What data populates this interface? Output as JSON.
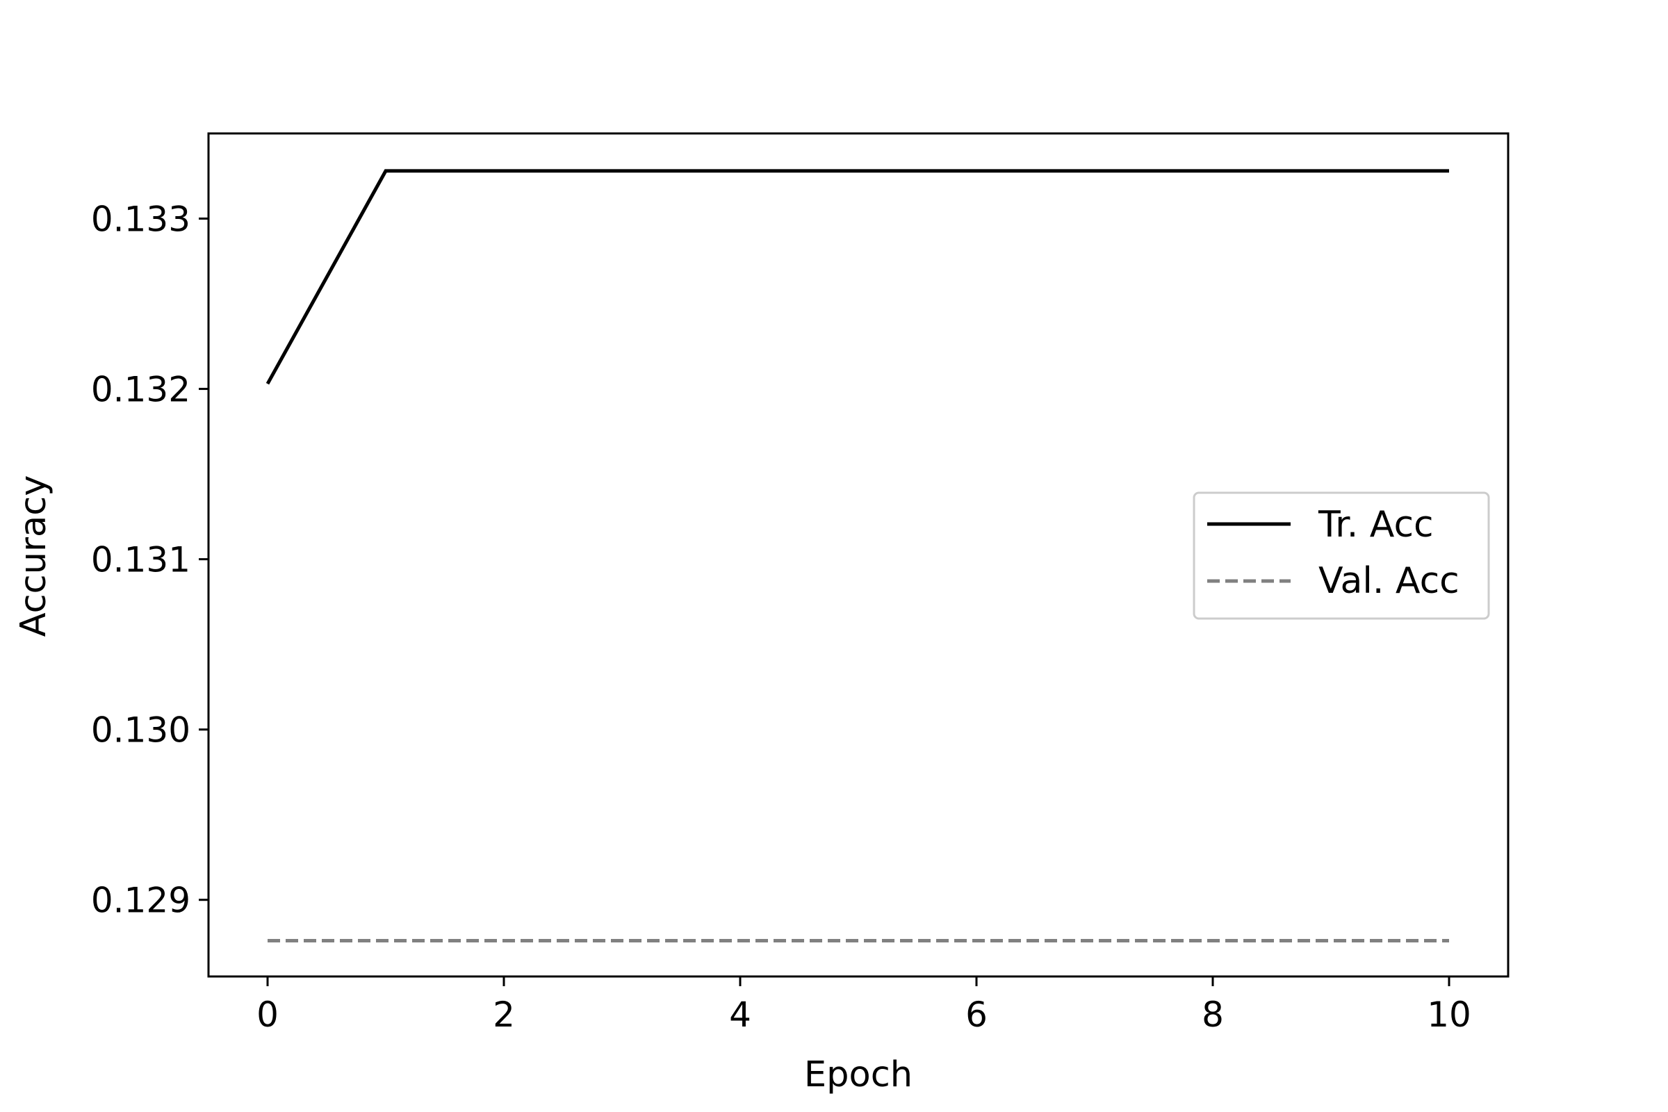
{
  "chart_data": {
    "type": "line",
    "title": "",
    "xlabel": "Epoch",
    "ylabel": "Accuracy",
    "x": [
      0,
      1,
      2,
      3,
      4,
      5,
      6,
      7,
      8,
      9,
      10
    ],
    "xlim": [
      -0.5,
      10.5
    ],
    "ylim": [
      0.12855,
      0.1335
    ],
    "xticks": [
      0,
      2,
      4,
      6,
      8,
      10
    ],
    "xtick_labels": [
      "0",
      "2",
      "4",
      "6",
      "8",
      "10"
    ],
    "yticks": [
      0.129,
      0.13,
      0.131,
      0.132,
      0.133
    ],
    "ytick_labels": [
      "0.129",
      "0.130",
      "0.131",
      "0.132",
      "0.133"
    ],
    "grid": false,
    "legend_position": "center-right",
    "series": [
      {
        "name": "Tr. Acc",
        "color": "#000000",
        "style": "solid",
        "values": [
          0.13203,
          0.13328,
          0.13328,
          0.13328,
          0.13328,
          0.13328,
          0.13328,
          0.13328,
          0.13328,
          0.13328,
          0.13328
        ]
      },
      {
        "name": "Val. Acc",
        "color": "#808080",
        "style": "dashed",
        "values": [
          0.12876,
          0.12876,
          0.12876,
          0.12876,
          0.12876,
          0.12876,
          0.12876,
          0.12876,
          0.12876,
          0.12876,
          0.12876
        ]
      }
    ]
  }
}
